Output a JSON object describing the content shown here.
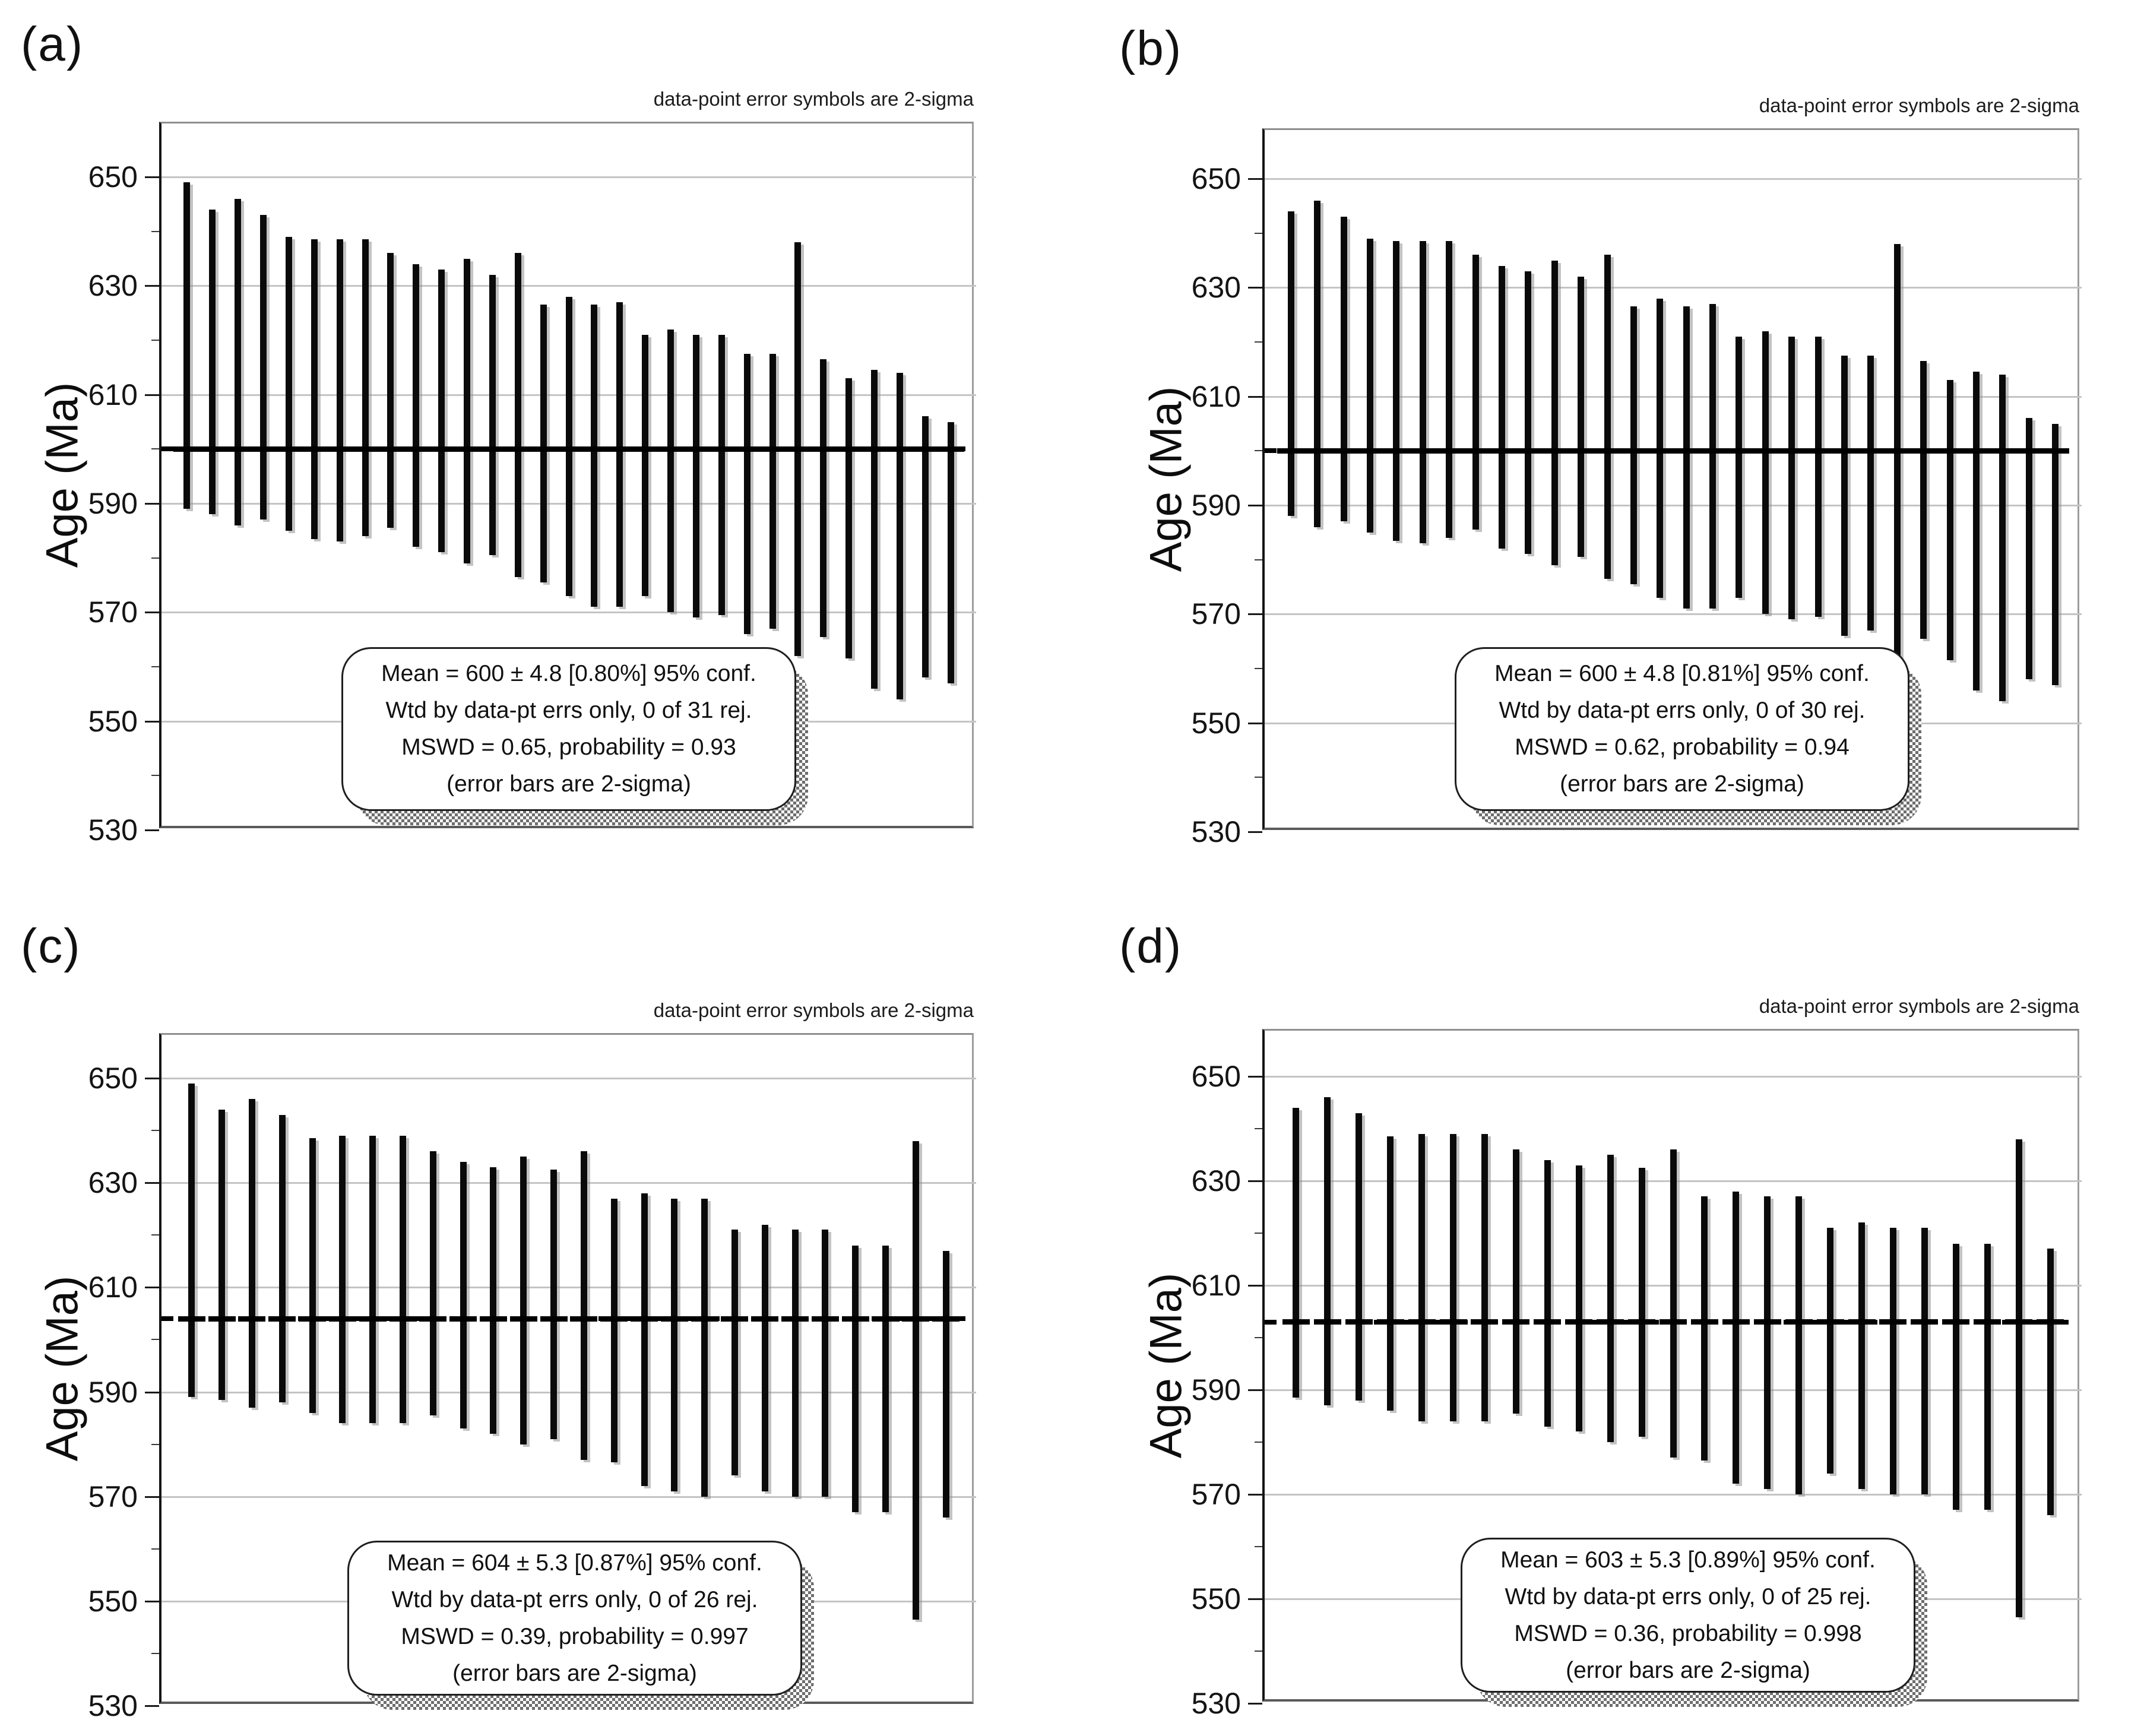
{
  "chart_data": [
    {
      "panel_label": "(a)",
      "type": "bar",
      "subtype": "weighted-mean-2sigma-error-bars",
      "annotation": "data-point error symbols are 2-sigma",
      "ylabel": "Age (Ma)",
      "units": "Ma",
      "yticks": [
        650,
        630,
        610,
        590,
        570,
        550,
        530
      ],
      "ylim": [
        530,
        660
      ],
      "grid": "horizontal major every 20 Ma, minor ticks every 10 Ma",
      "legend_position": "none",
      "mean": 600,
      "mean_line_style": "dashed",
      "n_points": 31,
      "stats_lines": [
        "Mean = 600 ± 4.8  [0.80%]  95% conf.",
        "Wtd by data-pt errs only, 0 of 31 rej.",
        "MSWD = 0.65, probability = 0.93",
        "(error bars are 2-sigma)"
      ],
      "bars_2sigma_range": [
        [
          589,
          649
        ],
        [
          588,
          644
        ],
        [
          586,
          646
        ],
        [
          587,
          643
        ],
        [
          585,
          639
        ],
        [
          583.5,
          638.5
        ],
        [
          583,
          638.5
        ],
        [
          584,
          638.5
        ],
        [
          585.5,
          636
        ],
        [
          582,
          634
        ],
        [
          581,
          633
        ],
        [
          579,
          635
        ],
        [
          580.5,
          632
        ],
        [
          576.5,
          636
        ],
        [
          575.5,
          626.5
        ],
        [
          573,
          628
        ],
        [
          571,
          626.5
        ],
        [
          571,
          627
        ],
        [
          573,
          621
        ],
        [
          570,
          622
        ],
        [
          569,
          621
        ],
        [
          569.5,
          621
        ],
        [
          566,
          617.5
        ],
        [
          567,
          617.5
        ],
        [
          562,
          638
        ],
        [
          565.5,
          616.5
        ],
        [
          561.5,
          613
        ],
        [
          556,
          614.5
        ],
        [
          554,
          614
        ],
        [
          558,
          606
        ],
        [
          557,
          605
        ]
      ]
    },
    {
      "panel_label": "(b)",
      "type": "bar",
      "subtype": "weighted-mean-2sigma-error-bars",
      "annotation": "data-point error symbols are 2-sigma",
      "ylabel": "Age (Ma)",
      "units": "Ma",
      "yticks": [
        650,
        630,
        610,
        590,
        570,
        550,
        530
      ],
      "ylim": [
        530,
        660
      ],
      "grid": "horizontal major every 20 Ma, minor ticks every 10 Ma",
      "legend_position": "none",
      "mean": 600,
      "mean_line_style": "dashed",
      "n_points": 30,
      "stats_lines": [
        "Mean =  600 ± 4.8  [0.81%]  95% conf.",
        "Wtd by data-pt errs only, 0 of 30 rej.",
        "MSWD = 0.62, probability = 0.94",
        "(error bars are 2-sigma)"
      ],
      "bars_2sigma_range": [
        [
          588,
          644
        ],
        [
          586,
          646
        ],
        [
          587,
          643
        ],
        [
          585,
          639
        ],
        [
          583.5,
          638.5
        ],
        [
          583,
          638.5
        ],
        [
          584,
          638.5
        ],
        [
          585.5,
          636
        ],
        [
          582,
          634
        ],
        [
          581,
          633
        ],
        [
          579,
          635
        ],
        [
          580.5,
          632
        ],
        [
          576.5,
          636
        ],
        [
          575.5,
          626.5
        ],
        [
          573,
          628
        ],
        [
          571,
          626.5
        ],
        [
          571,
          627
        ],
        [
          573,
          621
        ],
        [
          570,
          622
        ],
        [
          569,
          621
        ],
        [
          569.5,
          621
        ],
        [
          566,
          617.5
        ],
        [
          567,
          617.5
        ],
        [
          562,
          638
        ],
        [
          565.5,
          616.5
        ],
        [
          561.5,
          613
        ],
        [
          556,
          614.5
        ],
        [
          554,
          614
        ],
        [
          558,
          606
        ],
        [
          557,
          605
        ]
      ]
    },
    {
      "panel_label": "(c)",
      "type": "bar",
      "subtype": "weighted-mean-2sigma-error-bars",
      "annotation": "data-point error symbols are 2-sigma",
      "ylabel": "Age (Ma)",
      "units": "Ma",
      "yticks": [
        650,
        630,
        610,
        590,
        570,
        550,
        530
      ],
      "ylim": [
        530,
        660
      ],
      "grid": "horizontal major every 20 Ma, minor ticks every 10 Ma",
      "legend_position": "none",
      "mean": 604,
      "mean_line_style": "dashed",
      "n_points": 26,
      "stats_lines": [
        "Mean = 604 ± 5.3  [0.87%]  95% conf.",
        "Wtd by data-pt errs only, 0 of 26 rej.",
        "MSWD = 0.39, probability = 0.997",
        "(error bars are 2-sigma)"
      ],
      "bars_2sigma_range": [
        [
          589,
          649
        ],
        [
          588.5,
          644
        ],
        [
          587,
          646
        ],
        [
          588,
          643
        ],
        [
          586,
          638.5
        ],
        [
          584,
          639
        ],
        [
          584,
          639
        ],
        [
          584,
          639
        ],
        [
          585.5,
          636
        ],
        [
          583,
          634
        ],
        [
          582,
          633
        ],
        [
          580,
          635
        ],
        [
          581,
          632.5
        ],
        [
          577,
          636
        ],
        [
          576.5,
          627
        ],
        [
          572,
          628
        ],
        [
          571,
          627
        ],
        [
          570,
          627
        ],
        [
          574,
          621
        ],
        [
          571,
          622
        ],
        [
          570,
          621
        ],
        [
          570,
          621
        ],
        [
          567,
          618
        ],
        [
          567,
          618
        ],
        [
          546.5,
          638
        ],
        [
          566,
          617
        ]
      ]
    },
    {
      "panel_label": "(d)",
      "type": "bar",
      "subtype": "weighted-mean-2sigma-error-bars",
      "annotation": "data-point error symbols are 2-sigma",
      "ylabel": "Age (Ma)",
      "units": "Ma",
      "yticks": [
        650,
        630,
        610,
        590,
        570,
        550,
        530
      ],
      "ylim": [
        530,
        660
      ],
      "grid": "horizontal major every 20 Ma, minor ticks every 10 Ma",
      "legend_position": "none",
      "mean": 603,
      "mean_line_style": "dashed",
      "n_points": 25,
      "stats_lines": [
        "Mean = 603 ± 5.3  [0.89%]  95% conf.",
        "Wtd by data-pt errs only, 0 of 25 rej.",
        "MSWD = 0.36, probability = 0.998",
        "(error bars are 2-sigma)"
      ],
      "bars_2sigma_range": [
        [
          588.5,
          644
        ],
        [
          587,
          646
        ],
        [
          588,
          643
        ],
        [
          586,
          638.5
        ],
        [
          584,
          639
        ],
        [
          584,
          639
        ],
        [
          584,
          639
        ],
        [
          585.5,
          636
        ],
        [
          583,
          634
        ],
        [
          582,
          633
        ],
        [
          580,
          635
        ],
        [
          581,
          632.5
        ],
        [
          577,
          636
        ],
        [
          576.5,
          627
        ],
        [
          572,
          628
        ],
        [
          571,
          627
        ],
        [
          570,
          627
        ],
        [
          574,
          621
        ],
        [
          571,
          622
        ],
        [
          570,
          621
        ],
        [
          570,
          621
        ],
        [
          567,
          618
        ],
        [
          567,
          618
        ],
        [
          546.5,
          638
        ],
        [
          566,
          617
        ]
      ]
    }
  ]
}
